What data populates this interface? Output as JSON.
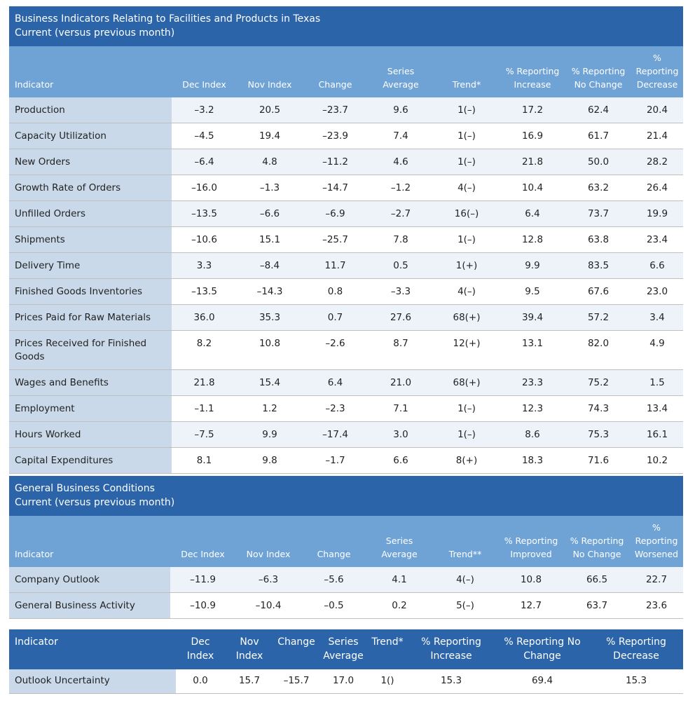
{
  "table1": {
    "title_line1": "Business Indicators Relating to Facilities and Products in Texas",
    "title_line2": "Current (versus previous month)",
    "headers": {
      "indicator": "Indicator",
      "dec_index": "Dec Index",
      "nov_index": "Nov Index",
      "change": "Change",
      "series_avg_1": "Series",
      "series_avg_2": "Average",
      "trend": "Trend*",
      "increase_1": "% Reporting",
      "increase_2": "Increase",
      "nochange_1": "% Reporting",
      "nochange_2": "No Change",
      "decrease_1": "%",
      "decrease_2": "Reporting",
      "decrease_3": "Decrease"
    },
    "rows": [
      {
        "name": "Production",
        "dec": "–3.2",
        "nov": "20.5",
        "change": "–23.7",
        "avg": "9.6",
        "trend": "1(–)",
        "inc": "17.2",
        "noch": "62.4",
        "dec_pct": "20.4"
      },
      {
        "name": "Capacity Utilization",
        "dec": "–4.5",
        "nov": "19.4",
        "change": "–23.9",
        "avg": "7.4",
        "trend": "1(–)",
        "inc": "16.9",
        "noch": "61.7",
        "dec_pct": "21.4"
      },
      {
        "name": "New Orders",
        "dec": "–6.4",
        "nov": "4.8",
        "change": "–11.2",
        "avg": "4.6",
        "trend": "1(–)",
        "inc": "21.8",
        "noch": "50.0",
        "dec_pct": "28.2"
      },
      {
        "name": "Growth Rate of Orders",
        "dec": "–16.0",
        "nov": "–1.3",
        "change": "–14.7",
        "avg": "–1.2",
        "trend": "4(–)",
        "inc": "10.4",
        "noch": "63.2",
        "dec_pct": "26.4"
      },
      {
        "name": "Unfilled Orders",
        "dec": "–13.5",
        "nov": "–6.6",
        "change": "–6.9",
        "avg": "–2.7",
        "trend": "16(–)",
        "inc": "6.4",
        "noch": "73.7",
        "dec_pct": "19.9"
      },
      {
        "name": "Shipments",
        "dec": "–10.6",
        "nov": "15.1",
        "change": "–25.7",
        "avg": "7.8",
        "trend": "1(–)",
        "inc": "12.8",
        "noch": "63.8",
        "dec_pct": "23.4"
      },
      {
        "name": "Delivery Time",
        "dec": "3.3",
        "nov": "–8.4",
        "change": "11.7",
        "avg": "0.5",
        "trend": "1(+)",
        "inc": "9.9",
        "noch": "83.5",
        "dec_pct": "6.6"
      },
      {
        "name": "Finished Goods Inventories",
        "dec": "–13.5",
        "nov": "–14.3",
        "change": "0.8",
        "avg": "–3.3",
        "trend": "4(–)",
        "inc": "9.5",
        "noch": "67.6",
        "dec_pct": "23.0"
      },
      {
        "name": "Prices Paid for Raw Materials",
        "dec": "36.0",
        "nov": "35.3",
        "change": "0.7",
        "avg": "27.6",
        "trend": "68(+)",
        "inc": "39.4",
        "noch": "57.2",
        "dec_pct": "3.4"
      },
      {
        "name": "Prices Received for Finished Goods",
        "dec": "8.2",
        "nov": "10.8",
        "change": "–2.6",
        "avg": "8.7",
        "trend": "12(+)",
        "inc": "13.1",
        "noch": "82.0",
        "dec_pct": "4.9"
      },
      {
        "name": "Wages and Benefits",
        "dec": "21.8",
        "nov": "15.4",
        "change": "6.4",
        "avg": "21.0",
        "trend": "68(+)",
        "inc": "23.3",
        "noch": "75.2",
        "dec_pct": "1.5"
      },
      {
        "name": "Employment",
        "dec": "–1.1",
        "nov": "1.2",
        "change": "–2.3",
        "avg": "7.1",
        "trend": "1(–)",
        "inc": "12.3",
        "noch": "74.3",
        "dec_pct": "13.4"
      },
      {
        "name": "Hours Worked",
        "dec": "–7.5",
        "nov": "9.9",
        "change": "–17.4",
        "avg": "3.0",
        "trend": "1(–)",
        "inc": "8.6",
        "noch": "75.3",
        "dec_pct": "16.1"
      },
      {
        "name": "Capital Expenditures",
        "dec": "8.1",
        "nov": "9.8",
        "change": "–1.7",
        "avg": "6.6",
        "trend": "8(+)",
        "inc": "18.3",
        "noch": "71.6",
        "dec_pct": "10.2"
      }
    ]
  },
  "table2": {
    "title_line1": "General Business Conditions",
    "title_line2": "Current (versus previous month)",
    "headers": {
      "indicator": "Indicator",
      "dec_index": "Dec Index",
      "nov_index": "Nov Index",
      "change": "Change",
      "series_avg_1": "Series",
      "series_avg_2": "Average",
      "trend": "Trend**",
      "improved_1": "% Reporting",
      "improved_2": "Improved",
      "nochange_1": "% Reporting",
      "nochange_2": "No Change",
      "worsened_1": "%",
      "worsened_2": "Reporting",
      "worsened_3": "Worsened"
    },
    "rows": [
      {
        "name": "Company Outlook",
        "dec": "–11.9",
        "nov": "–6.3",
        "change": "–5.6",
        "avg": "4.1",
        "trend": "4(–)",
        "imp": "10.8",
        "noch": "66.5",
        "wor": "22.7"
      },
      {
        "name": "General Business Activity",
        "dec": "–10.9",
        "nov": "–10.4",
        "change": "–0.5",
        "avg": "0.2",
        "trend": "5(–)",
        "imp": "12.7",
        "noch": "63.7",
        "wor": "23.6"
      }
    ]
  },
  "table3": {
    "headers": {
      "indicator": "Indicator",
      "dec_index_1": "Dec",
      "dec_index_2": "Index",
      "nov_index_1": "Nov",
      "nov_index_2": "Index",
      "change": "Change",
      "series_avg_1": "Series",
      "series_avg_2": "Average",
      "trend": "Trend*",
      "increase_1": "% Reporting",
      "increase_2": "Increase",
      "nochange_1": "% Reporting No",
      "nochange_2": "Change",
      "decrease_1": "% Reporting",
      "decrease_2": "Decrease"
    },
    "rows": [
      {
        "name": "Outlook Uncertainty",
        "dec": "0.0",
        "nov": "15.7",
        "change": "–15.7",
        "avg": "17.0",
        "trend": "1()",
        "inc": "15.3",
        "noch": "69.4",
        "dec_pct": "15.3"
      }
    ]
  }
}
